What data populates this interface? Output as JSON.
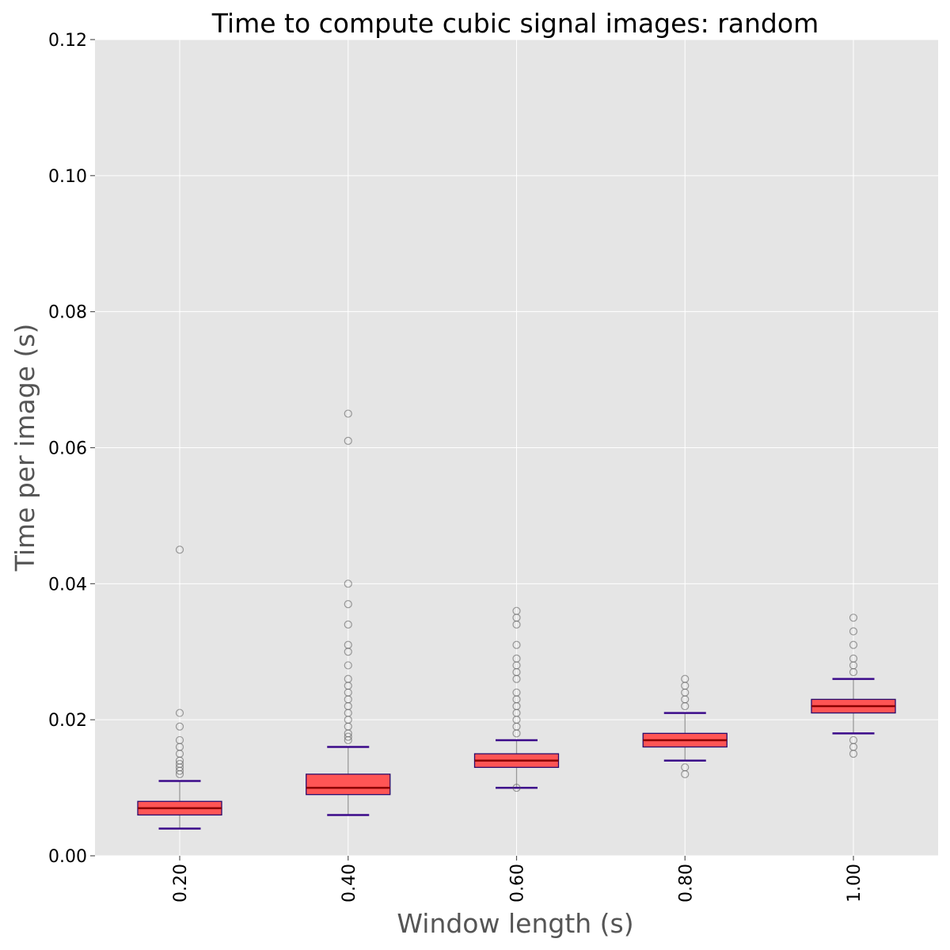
{
  "chart_data": {
    "type": "box",
    "title": "Time to compute cubic signal images: random",
    "xlabel": "Window length (s)",
    "ylabel": "Time per image (s)",
    "ylim": [
      0,
      0.12
    ],
    "yticks": [
      "0.00",
      "0.02",
      "0.04",
      "0.06",
      "0.08",
      "0.10",
      "0.12"
    ],
    "yticks_values": [
      0,
      0.02,
      0.04,
      0.06,
      0.08,
      0.1,
      0.12
    ],
    "categories": [
      "0.20",
      "0.40",
      "0.60",
      "0.80",
      "1.00"
    ],
    "grid": true,
    "colors": {
      "background": "#e5e5e5",
      "grid": "#ffffff",
      "box_fill": "#ff5555",
      "box_edge": "#2a0a6b",
      "median": "#8b0000",
      "whisker": "#999999",
      "cap": "#3b0a8a",
      "outlier": "#555555"
    },
    "boxes": [
      {
        "category": "0.20",
        "whislo": 0.004,
        "q1": 0.006,
        "median": 0.007,
        "q3": 0.008,
        "whishi": 0.011,
        "fliers": [
          0.012,
          0.0125,
          0.013,
          0.0135,
          0.014,
          0.015,
          0.016,
          0.017,
          0.019,
          0.021,
          0.045
        ]
      },
      {
        "category": "0.40",
        "whislo": 0.006,
        "q1": 0.009,
        "median": 0.01,
        "q3": 0.012,
        "whishi": 0.016,
        "fliers": [
          0.017,
          0.0175,
          0.018,
          0.019,
          0.02,
          0.021,
          0.022,
          0.023,
          0.024,
          0.025,
          0.026,
          0.028,
          0.03,
          0.031,
          0.034,
          0.037,
          0.04,
          0.061,
          0.065
        ]
      },
      {
        "category": "0.60",
        "whislo": 0.01,
        "q1": 0.013,
        "median": 0.014,
        "q3": 0.015,
        "whishi": 0.017,
        "fliers": [
          0.01,
          0.018,
          0.019,
          0.02,
          0.021,
          0.022,
          0.023,
          0.024,
          0.026,
          0.027,
          0.028,
          0.029,
          0.031,
          0.034,
          0.035,
          0.036
        ]
      },
      {
        "category": "0.80",
        "whislo": 0.014,
        "q1": 0.016,
        "median": 0.017,
        "q3": 0.018,
        "whishi": 0.021,
        "fliers": [
          0.012,
          0.013,
          0.022,
          0.023,
          0.024,
          0.025,
          0.026
        ]
      },
      {
        "category": "1.00",
        "whislo": 0.018,
        "q1": 0.021,
        "median": 0.022,
        "q3": 0.023,
        "whishi": 0.026,
        "fliers": [
          0.015,
          0.016,
          0.017,
          0.027,
          0.028,
          0.029,
          0.031,
          0.033,
          0.035
        ]
      }
    ]
  }
}
